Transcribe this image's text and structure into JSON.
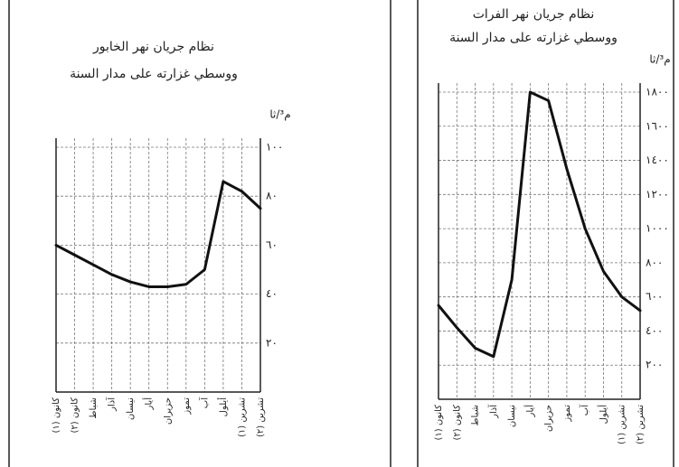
{
  "chart_data": [
    {
      "type": "line",
      "title": "نظام جريان نهر الخابور",
      "subtitle": "ووسطي غزارته على مدار السنة",
      "y_label": "م³/ثا",
      "categories": [
        "كانون (١)",
        "كانون (٢)",
        "شباط",
        "آذار",
        "نيسان",
        "أيار",
        "حزيران",
        "تموز",
        "آب",
        "أيلول",
        "تشرين (١)",
        "تشرين (٢)"
      ],
      "series": [
        {
          "name": "الخابور",
          "color": "#111111",
          "values": [
            60,
            56,
            52,
            48,
            45,
            43,
            43,
            44,
            50,
            86,
            82,
            75
          ]
        }
      ],
      "ylim": [
        0,
        100
      ],
      "yticks": [
        {
          "value": 20,
          "label": "٢٠"
        },
        {
          "value": 40,
          "label": "٤٠"
        },
        {
          "value": 60,
          "label": "٦٠"
        },
        {
          "value": 80,
          "label": "٨٠"
        },
        {
          "value": 100,
          "label": "١٠٠"
        }
      ],
      "grid": true
    },
    {
      "type": "line",
      "title": "نظام جريان نهر الفرات",
      "subtitle": "ووسطي غزارته على مدار السنة",
      "y_label": "م³/ثا",
      "categories": [
        "كانون (١)",
        "كانون (٢)",
        "شباط",
        "آذار",
        "نيسان",
        "أيار",
        "حزيران",
        "تموز",
        "آب",
        "أيلول",
        "تشرين (١)",
        "تشرين (٢)"
      ],
      "series": [
        {
          "name": "الفرات",
          "color": "#111111",
          "values": [
            550,
            420,
            300,
            250,
            700,
            1800,
            1750,
            1350,
            1000,
            750,
            600,
            520
          ]
        }
      ],
      "ylim": [
        0,
        1800
      ],
      "yticks": [
        {
          "value": 200,
          "label": "٢٠٠"
        },
        {
          "value": 400,
          "label": "٤٠٠"
        },
        {
          "value": 600,
          "label": "٦٠٠"
        },
        {
          "value": 800,
          "label": "٨٠٠"
        },
        {
          "value": 1000,
          "label": "١٠٠٠"
        },
        {
          "value": 1200,
          "label": "١٢٠٠"
        },
        {
          "value": 1400,
          "label": "١٤٠٠"
        },
        {
          "value": 1600,
          "label": "١٦٠٠"
        },
        {
          "value": 1800,
          "label": "١٨٠٠"
        }
      ],
      "grid": true
    }
  ]
}
